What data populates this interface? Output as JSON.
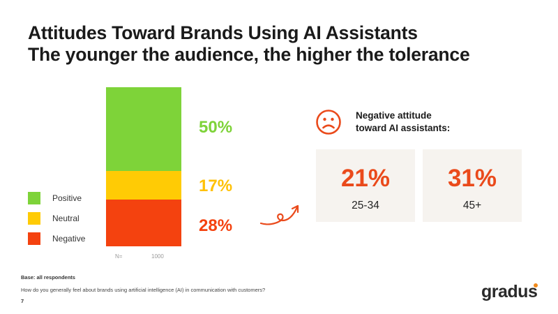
{
  "title": {
    "line1": "Attitudes Toward Brands Using AI Assistants",
    "line2": "The younger the audience, the higher the tolerance"
  },
  "chart_data": {
    "type": "bar",
    "stacked": true,
    "categories": [
      "1000"
    ],
    "n_label": "N=",
    "series": [
      {
        "name": "Positive",
        "values": [
          50
        ],
        "label": "50%",
        "color": "#7ed339"
      },
      {
        "name": "Neutral",
        "values": [
          17
        ],
        "label": "17%",
        "color": "#ffcb05"
      },
      {
        "name": "Negative",
        "values": [
          28
        ],
        "label": "28%",
        "color": "#f4420f"
      }
    ],
    "legend_position": "left"
  },
  "negative_panel": {
    "heading_line1": "Negative attitude",
    "heading_line2": "toward AI assistants:",
    "icon": "sad-face-icon",
    "icon_color": "#ea4a1b",
    "cards": [
      {
        "value": "21%",
        "label": "25-34"
      },
      {
        "value": "31%",
        "label": "45+"
      }
    ]
  },
  "footer": {
    "base": "Base: all respondents",
    "question": "How do you generally feel about brands using artificial intelligence (AI) in communication with customers?",
    "page_number": "7"
  },
  "brand": {
    "logo_text": "gradus",
    "accent": "#f08a1b"
  }
}
